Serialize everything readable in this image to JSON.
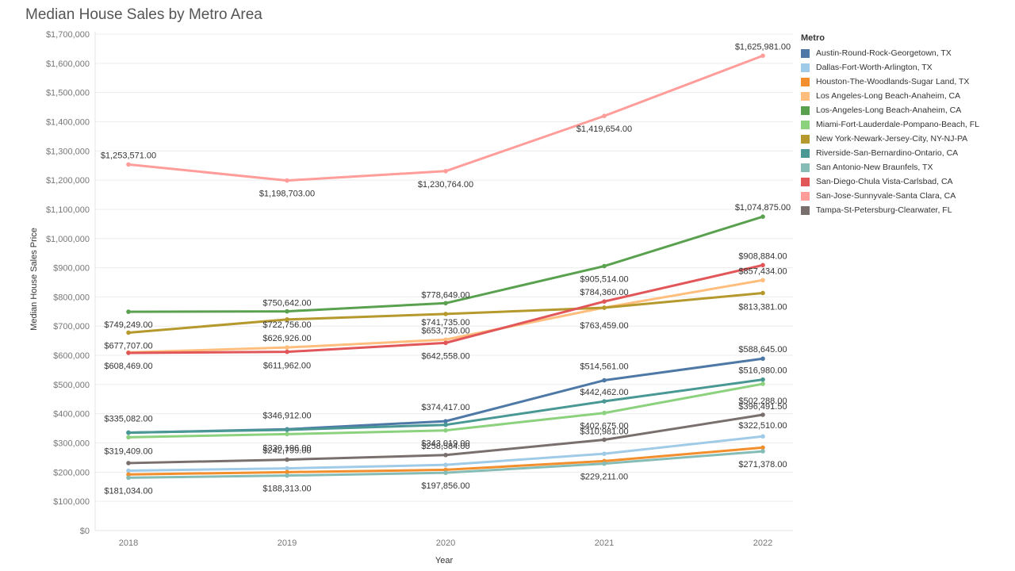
{
  "title": "Median House Sales by Metro Area",
  "chart_data": {
    "type": "line",
    "title": "Median House Sales by Metro Area",
    "xlabel": "Year",
    "ylabel": "Median House Sales Price",
    "x": [
      "2018",
      "2019",
      "2020",
      "2021",
      "2022"
    ],
    "ylim": [
      0,
      1700000
    ],
    "yticks": [
      "$0",
      "$100,000",
      "$200,000",
      "$300,000",
      "$400,000",
      "$500,000",
      "$600,000",
      "$700,000",
      "$800,000",
      "$900,000",
      "$1,000,000",
      "$1,100,000",
      "$1,200,000",
      "$1,300,000",
      "$1,400,000",
      "$1,500,000",
      "$1,600,000",
      "$1,700,000"
    ],
    "grid": true,
    "legend_title": "Metro",
    "legend_position": "right",
    "series": [
      {
        "name": "Austin-Round-Rock-Georgetown, TX",
        "color": "#4e79a7",
        "values": [
          335082,
          346912,
          374417,
          514561,
          588645
        ],
        "labels": [
          "$335,082.00",
          "$346,912.00",
          "$374,417.00",
          "$514,561.00",
          "$588,645.00"
        ]
      },
      {
        "name": "Dallas-Fort-Worth-Arlington, TX",
        "color": "#a0cbe8",
        "values": [
          205000,
          213000,
          225000,
          263000,
          322510
        ],
        "labels": [
          "",
          "",
          "",
          "",
          "$322,510.00"
        ]
      },
      {
        "name": "Houston-The-Woodlands-Sugar Land, TX",
        "color": "#f28e2b",
        "values": [
          192000,
          200000,
          208000,
          238000,
          284000
        ],
        "labels": [
          "",
          "",
          "",
          "",
          ""
        ]
      },
      {
        "name": "Los Angeles-Long Beach-Anaheim, CA",
        "color": "#ffbe7d",
        "values": [
          610000,
          626926,
          653730,
          763459,
          857434
        ],
        "labels": [
          "",
          "$626,926.00",
          "$653,730.00",
          "$763,459.00",
          "$857,434.00"
        ]
      },
      {
        "name": "Los-Angeles-Long Beach-Anaheim, CA",
        "color": "#59a14f",
        "values": [
          749249,
          750642,
          778649,
          905514,
          1074875
        ],
        "labels": [
          "$749,249.00",
          "$750,642.00",
          "$778,649.00",
          "$905,514.00",
          "$1,074,875.00"
        ]
      },
      {
        "name": "Miami-Fort-Lauderdale-Pompano-Beach, FL",
        "color": "#8cd17d",
        "values": [
          319409,
          330196,
          343019,
          402675,
          502288
        ],
        "labels": [
          "$319,409.00",
          "$330,196.00",
          "$343,019.00",
          "$402,675.00",
          "$502,288.00"
        ]
      },
      {
        "name": "New York-Newark-Jersey-City, NY-NJ-PA",
        "color": "#b6992d",
        "values": [
          677707,
          722756,
          741735,
          763000,
          813381
        ],
        "labels": [
          "$677,707.00",
          "$722,756.00",
          "$741,735.00",
          "",
          "$813,381.00"
        ]
      },
      {
        "name": "Riverside-San-Bernardino-Ontario, CA",
        "color": "#499894",
        "values": [
          335500,
          345000,
          362000,
          442462,
          516980
        ],
        "labels": [
          "",
          "",
          "",
          "$442,462.00",
          "$516,980.00"
        ]
      },
      {
        "name": "San Antonio-New Braunfels, TX",
        "color": "#86bcb6",
        "values": [
          181034,
          188313,
          197856,
          229211,
          271378
        ],
        "labels": [
          "$181,034.00",
          "$188,313.00",
          "$197,856.00",
          "$229,211.00",
          "$271,378.00"
        ]
      },
      {
        "name": "San-Diego-Chula Vista-Carlsbad, CA",
        "color": "#e15759",
        "values": [
          608469,
          611962,
          642558,
          784360,
          908884
        ],
        "labels": [
          "$608,469.00",
          "$611,962.00",
          "$642,558.00",
          "$784,360.00",
          "$908,884.00"
        ]
      },
      {
        "name": "San-Jose-Sunnyvale-Santa Clara, CA",
        "color": "#ff9d9a",
        "values": [
          1253571,
          1198703,
          1230764,
          1419654,
          1625981
        ],
        "labels": [
          "$1,253,571.00",
          "$1,198,703.00",
          "$1,230,764.00",
          "$1,419,654.00",
          "$1,625,981.00"
        ]
      },
      {
        "name": "Tampa-St-Petersburg-Clearwater, FL",
        "color": "#79706e",
        "values": [
          231000,
          242799,
          258584,
          310981,
          396491.5
        ],
        "labels": [
          "",
          "$242,799.00",
          "$258,584.00",
          "$310,981.00",
          "$396,491.50"
        ]
      }
    ]
  }
}
